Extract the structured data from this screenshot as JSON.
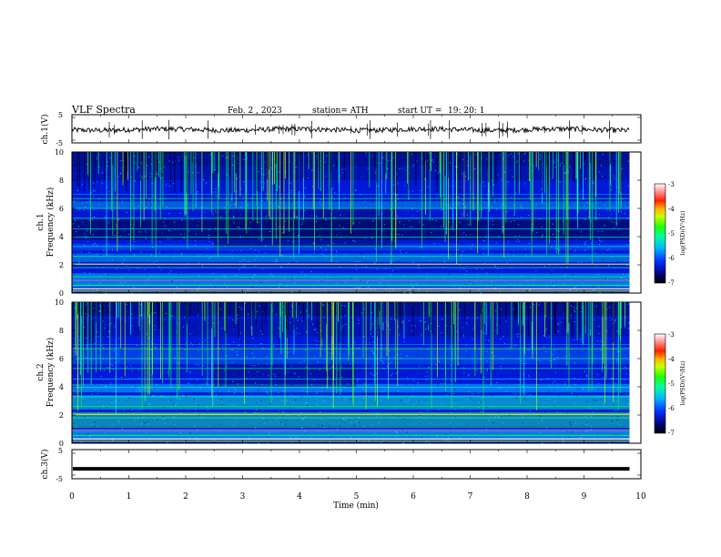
{
  "header": {
    "title": "VLF  Spectra",
    "date": "Feb. 2  , 2023",
    "station": "station= ATH",
    "start_label": "start  UT  =",
    "start_time": "19: 20: 1"
  },
  "chart_data": [
    {
      "type": "line",
      "name": "ch1-waveform",
      "ylabel": "ch.1(V)",
      "ylim": [
        -5,
        5
      ],
      "yticks": [
        "5",
        "-5"
      ],
      "xlim": [
        0,
        10
      ],
      "x_end": 9.8,
      "baseline": -0.3,
      "amplitude": 0.9
    },
    {
      "type": "heatmap",
      "name": "ch1-spectrogram",
      "ylabel_line1": "ch.1",
      "ylabel_line2": "Frequency  (kHz)",
      "ylim": [
        0,
        10
      ],
      "yticks": [
        "0",
        "2",
        "4",
        "6",
        "8",
        "10"
      ],
      "xlim": [
        0,
        10
      ],
      "x_end": 9.8,
      "colorbar": {
        "label": "log(PSD)(V²/Hz)",
        "range": [
          -7,
          -3
        ],
        "ticks": [
          "-3",
          "-4",
          "-5",
          "-6",
          "-7"
        ]
      }
    },
    {
      "type": "heatmap",
      "name": "ch2-spectrogram",
      "ylabel_line1": "ch.2",
      "ylabel_line2": "Frequency  (kHz)",
      "ylim": [
        0,
        10
      ],
      "yticks": [
        "0",
        "2",
        "4",
        "6",
        "8",
        "10"
      ],
      "xlim": [
        0,
        10
      ],
      "x_end": 9.8,
      "colorbar": {
        "label": "log(PSD)(V²/Hz)",
        "range": [
          -7,
          -3
        ],
        "ticks": [
          "-3",
          "-4",
          "-5",
          "-6",
          "-7"
        ]
      }
    },
    {
      "type": "line",
      "name": "ch3-waveform",
      "ylabel": "ch.3(V)",
      "ylim": [
        -5,
        5
      ],
      "yticks": [
        "5",
        "-5"
      ],
      "xlim": [
        0,
        10
      ],
      "x_end": 9.8,
      "baseline": -1.6
    }
  ],
  "x_axis": {
    "label": "Time  (min)",
    "ticks": [
      "0",
      "1",
      "2",
      "3",
      "4",
      "5",
      "6",
      "7",
      "8",
      "9",
      "10"
    ]
  },
  "colors": {
    "deep": "#000a60",
    "blue": "#0018d8",
    "cyan": "#00c8ff",
    "green": "#00ff4a",
    "lime": "#b4ff00"
  }
}
